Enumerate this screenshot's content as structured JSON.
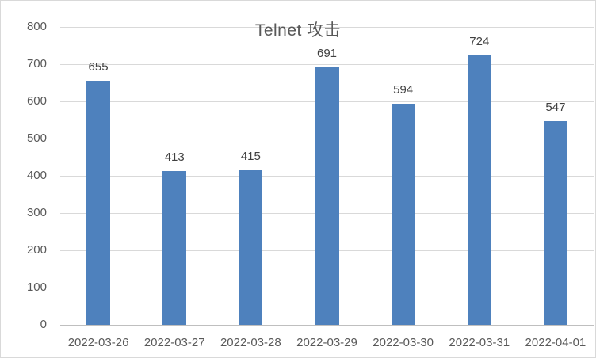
{
  "chart_data": {
    "type": "bar",
    "title": "Telnet 攻击",
    "categories": [
      "2022-03-26",
      "2022-03-27",
      "2022-03-28",
      "2022-03-29",
      "2022-03-30",
      "2022-03-31",
      "2022-04-01"
    ],
    "values": [
      655,
      413,
      415,
      691,
      594,
      724,
      547
    ],
    "data_labels": [
      "655",
      "413",
      "415",
      "691",
      "594",
      "724",
      "547"
    ],
    "xlabel": "",
    "ylabel": "",
    "ylim": [
      0,
      800
    ],
    "y_ticks": [
      0,
      100,
      200,
      300,
      400,
      500,
      600,
      700,
      800
    ],
    "grid": true,
    "legend": false,
    "series_name": "Telnet 攻击",
    "colors": {
      "bar": "#4e81bd",
      "gridline": "#d9d9d9",
      "axis_line": "#bfbfbf",
      "tick_label": "#595959",
      "data_label": "#404040",
      "title": "#595959",
      "frame_border": "#d9d9d9",
      "background": "#ffffff"
    }
  }
}
